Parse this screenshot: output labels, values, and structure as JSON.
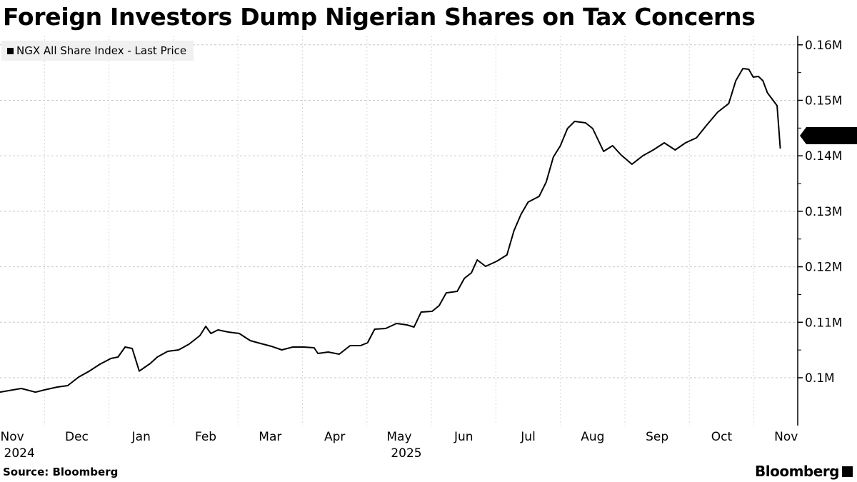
{
  "chart_data": {
    "type": "line",
    "title": "Foreign Investors Dump Nigerian Shares on Tax Concerns",
    "legend": [
      "NGX All Share Index - Last Price"
    ],
    "legend_position": "top-left",
    "x_unit": "months since 2024-11-01",
    "x_ticks": [
      "Nov",
      "Dec",
      "Jan",
      "Feb",
      "Mar",
      "Apr",
      "May",
      "Jun",
      "Jul",
      "Aug",
      "Sep",
      "Oct",
      "Nov"
    ],
    "x_year_labels": [
      {
        "label": "2024",
        "month_index": 1
      },
      {
        "label": "2025",
        "month_index": 7
      }
    ],
    "y_ticks": [
      {
        "label": "0.1M",
        "value": 100000
      },
      {
        "label": "0.11M",
        "value": 110000
      },
      {
        "label": "0.12M",
        "value": 120000
      },
      {
        "label": "0.13M",
        "value": 130000
      },
      {
        "label": "0.14M",
        "value": 140000
      },
      {
        "label": "0.15M",
        "value": 150000
      },
      {
        "label": "0.16M",
        "value": 160000
      }
    ],
    "ylim": [
      94000,
      161500
    ],
    "grid": true,
    "last_value_label": "0.141M",
    "series": [
      {
        "name": "NGX All Share Index - Last Price",
        "points": [
          [
            0.31,
            97400
          ],
          [
            0.64,
            98070
          ],
          [
            0.86,
            97400
          ],
          [
            1.0,
            97810
          ],
          [
            1.2,
            98330
          ],
          [
            1.36,
            98580
          ],
          [
            1.53,
            100130
          ],
          [
            1.69,
            101160
          ],
          [
            1.86,
            102450
          ],
          [
            2.03,
            103470
          ],
          [
            2.14,
            103730
          ],
          [
            2.25,
            105530
          ],
          [
            2.36,
            105280
          ],
          [
            2.47,
            101200
          ],
          [
            2.64,
            102570
          ],
          [
            2.75,
            103730
          ],
          [
            2.91,
            104760
          ],
          [
            3.08,
            105020
          ],
          [
            3.24,
            106050
          ],
          [
            3.41,
            107590
          ],
          [
            3.5,
            109270
          ],
          [
            3.58,
            107980
          ],
          [
            3.69,
            108620
          ],
          [
            3.85,
            108240
          ],
          [
            4.02,
            107980
          ],
          [
            4.19,
            106690
          ],
          [
            4.35,
            106180
          ],
          [
            4.52,
            105660
          ],
          [
            4.68,
            105020
          ],
          [
            4.85,
            105530
          ],
          [
            5.02,
            105530
          ],
          [
            5.18,
            105400
          ],
          [
            5.24,
            104380
          ],
          [
            5.4,
            104630
          ],
          [
            5.57,
            104250
          ],
          [
            5.74,
            105790
          ],
          [
            5.9,
            105790
          ],
          [
            6.01,
            106310
          ],
          [
            6.12,
            108750
          ],
          [
            6.29,
            108880
          ],
          [
            6.46,
            109780
          ],
          [
            6.62,
            109520
          ],
          [
            6.73,
            109140
          ],
          [
            6.84,
            111840
          ],
          [
            7.01,
            111970
          ],
          [
            7.12,
            113000
          ],
          [
            7.23,
            115300
          ],
          [
            7.4,
            115570
          ],
          [
            7.51,
            117900
          ],
          [
            7.62,
            118920
          ],
          [
            7.71,
            121240
          ],
          [
            7.84,
            120080
          ],
          [
            8.01,
            120980
          ],
          [
            8.17,
            122140
          ],
          [
            8.28,
            126510
          ],
          [
            8.39,
            129470
          ],
          [
            8.5,
            131660
          ],
          [
            8.67,
            132690
          ],
          [
            8.78,
            135260
          ],
          [
            8.89,
            139770
          ],
          [
            9.0,
            141830
          ],
          [
            9.11,
            144920
          ],
          [
            9.22,
            146200
          ],
          [
            9.39,
            145950
          ],
          [
            9.5,
            144920
          ],
          [
            9.67,
            140800
          ],
          [
            9.81,
            141830
          ],
          [
            9.94,
            140150
          ],
          [
            10.11,
            138480
          ],
          [
            10.28,
            140020
          ],
          [
            10.44,
            141060
          ],
          [
            10.61,
            142340
          ],
          [
            10.78,
            141060
          ],
          [
            10.94,
            142340
          ],
          [
            11.11,
            143240
          ],
          [
            11.27,
            145560
          ],
          [
            11.44,
            147880
          ],
          [
            11.61,
            149420
          ],
          [
            11.72,
            153540
          ],
          [
            11.83,
            155730
          ],
          [
            11.92,
            155600
          ],
          [
            11.99,
            154180
          ],
          [
            12.07,
            154310
          ],
          [
            12.14,
            153540
          ],
          [
            12.21,
            151350
          ],
          [
            12.36,
            149030
          ],
          [
            12.41,
            141300
          ]
        ]
      }
    ]
  },
  "source": "Source: Bloomberg",
  "brand": "Bloomberg"
}
